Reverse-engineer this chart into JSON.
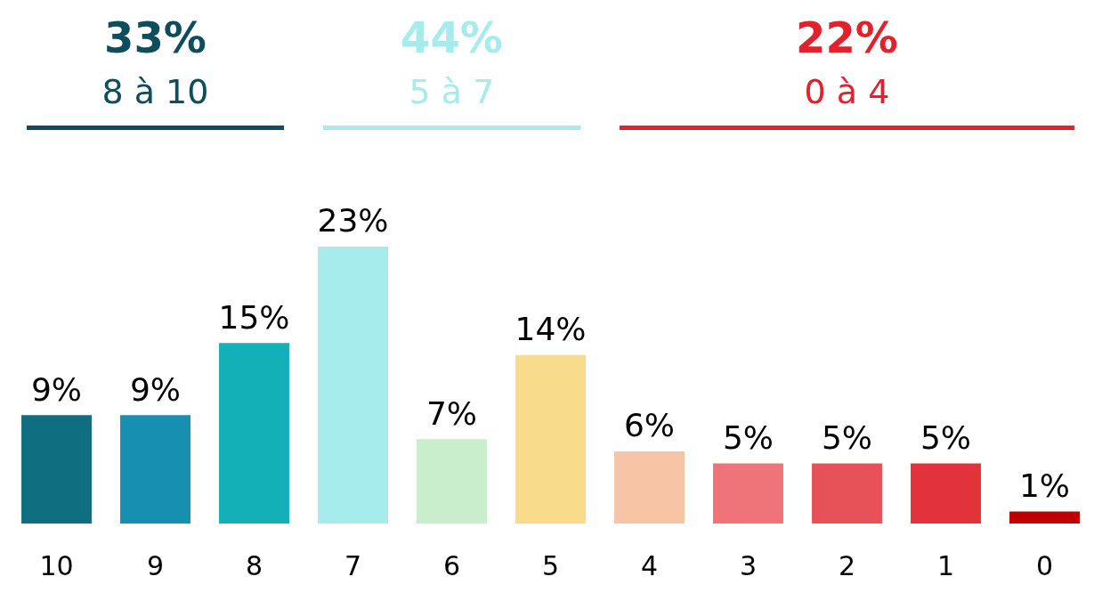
{
  "chart_data": {
    "type": "bar",
    "categories": [
      "10",
      "9",
      "8",
      "7",
      "6",
      "5",
      "4",
      "3",
      "2",
      "1",
      "0"
    ],
    "values": [
      9,
      9,
      15,
      23,
      7,
      14,
      6,
      5,
      5,
      5,
      1
    ],
    "colors": [
      "#0f6e80",
      "#168fb0",
      "#14b0b7",
      "#a6ecec",
      "#c8eecb",
      "#f8dc8c",
      "#f7c4a5",
      "#ee7479",
      "#e75259",
      "#e2333c",
      "#c00000"
    ],
    "value_labels": [
      "9%",
      "9%",
      "15%",
      "23%",
      "7%",
      "14%",
      "6%",
      "5%",
      "5%",
      "5%",
      "1%"
    ],
    "annotations": [
      "33%",
      "8 à 10",
      "44%",
      "5 à 7",
      "22%",
      "0 à 4"
    ]
  }
}
